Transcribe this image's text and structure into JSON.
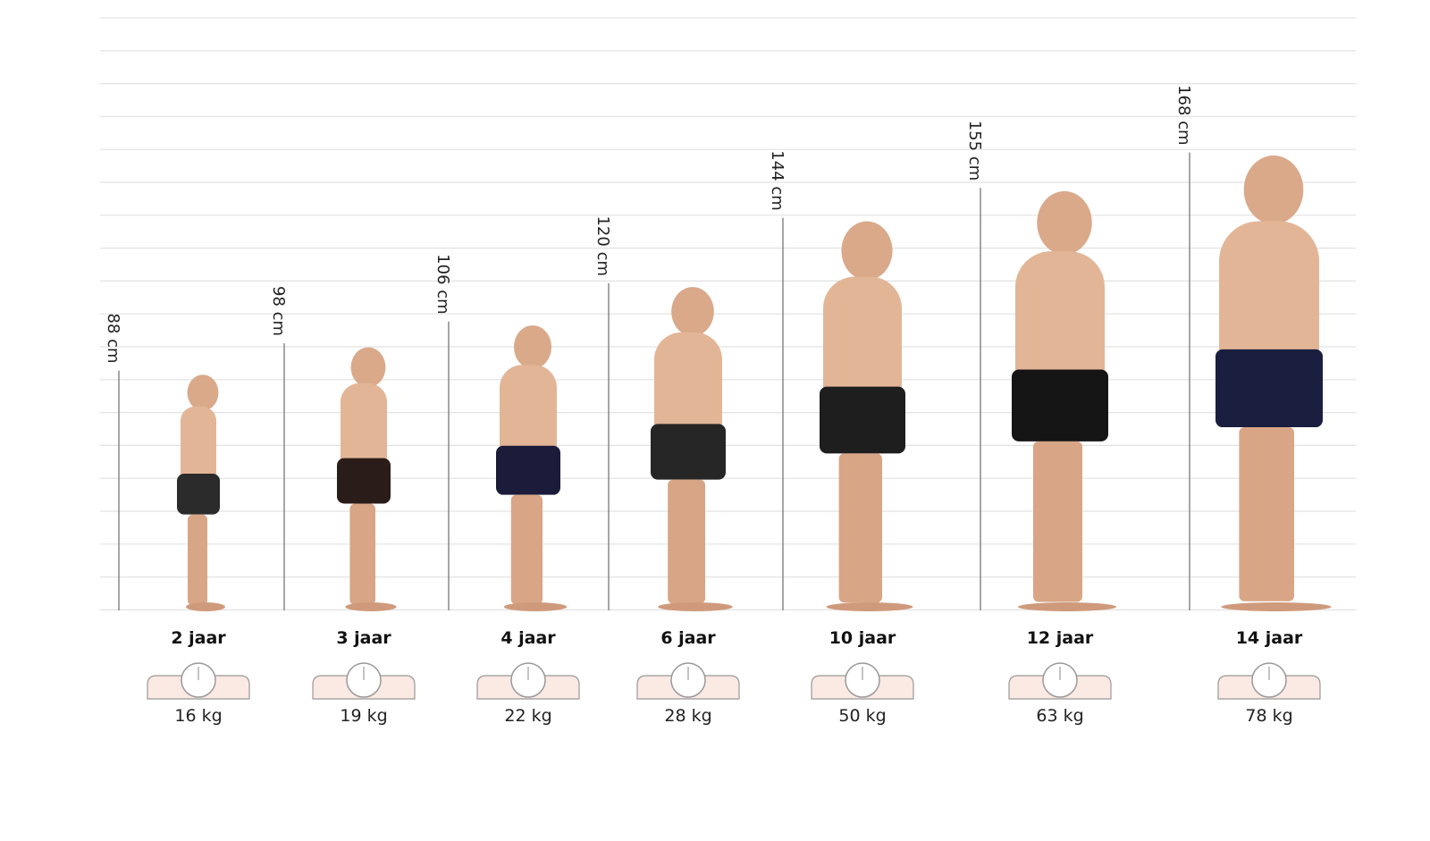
{
  "children": [
    {
      "age": "2 jaar",
      "height": {
        "value": 88,
        "label": "88 cm"
      },
      "weight": "16 kg"
    },
    {
      "age": "3 jaar",
      "height": {
        "value": 98,
        "label": "98 cm"
      },
      "weight": "19 kg"
    },
    {
      "age": "4 jaar",
      "height": {
        "value": 106,
        "label": "106 cm"
      },
      "weight": "22 kg"
    },
    {
      "age": "6 jaar",
      "height": {
        "value": 120,
        "label": "120 cm"
      },
      "weight": "28 kg"
    },
    {
      "age": "10 jaar",
      "height": {
        "value": 144,
        "label": "144 cm"
      },
      "weight": "50 kg"
    },
    {
      "age": "12 jaar",
      "height": {
        "value": 155,
        "label": "155 cm"
      },
      "weight": "63 kg"
    },
    {
      "age": "14 jaar",
      "height": {
        "value": 168,
        "label": "168 cm"
      },
      "weight": "78 kg"
    }
  ]
}
